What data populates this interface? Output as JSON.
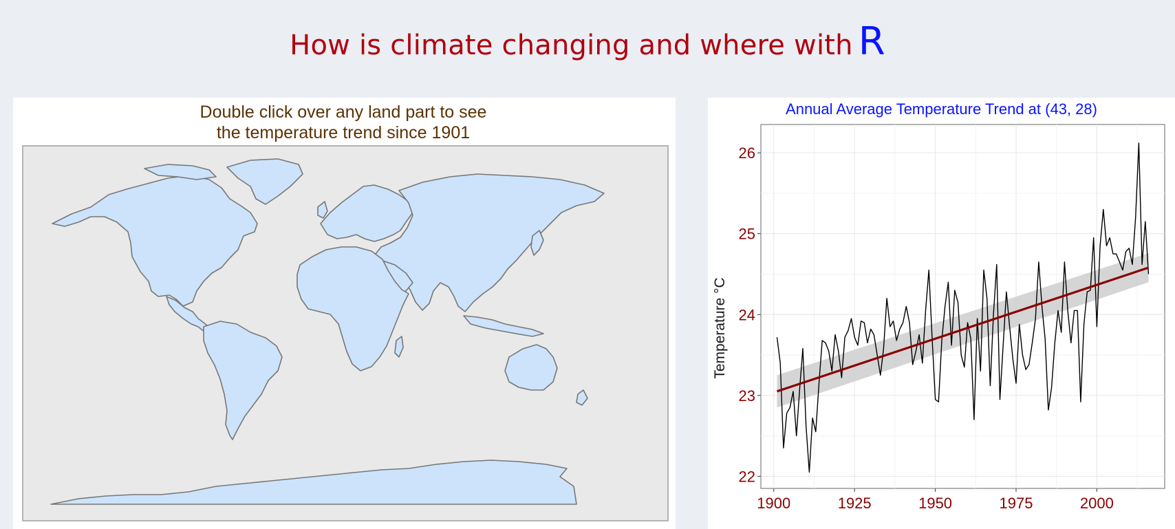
{
  "header": {
    "title": "How is climate changing and where with",
    "r_mark": "R"
  },
  "map_panel": {
    "caption_line1": "Double click over any land part to see",
    "caption_line2": "the temperature trend since 1901",
    "land_color": "#cce3fb",
    "border_color": "#777777"
  },
  "chart_data": {
    "type": "line",
    "title": "Annual Average Temperature Trend at (43, 28)",
    "xlabel": "",
    "ylabel": "Temperature  °C",
    "xlim": [
      1896,
      2021
    ],
    "ylim": [
      21.85,
      26.35
    ],
    "x_ticks": [
      1900,
      1925,
      1950,
      1975,
      2000
    ],
    "y_ticks": [
      22,
      23,
      24,
      25,
      26
    ],
    "grid": true,
    "series": [
      {
        "x": [
          1901,
          1902,
          1903,
          1904,
          1905,
          1906,
          1907,
          1908,
          1909,
          1910,
          1911,
          1912,
          1913,
          1914,
          1915,
          1916,
          1917,
          1918,
          1919,
          1920,
          1921,
          1922,
          1923,
          1924,
          1925,
          1926,
          1927,
          1928,
          1929,
          1930,
          1931,
          1932,
          1933,
          1934,
          1935,
          1936,
          1937,
          1938,
          1939,
          1940,
          1941,
          1942,
          1943,
          1944,
          1945,
          1946,
          1947,
          1948,
          1949,
          1950,
          1951,
          1952,
          1953,
          1954,
          1955,
          1956,
          1957,
          1958,
          1959,
          1960,
          1961,
          1962,
          1963,
          1964,
          1965,
          1966,
          1967,
          1968,
          1969,
          1970,
          1971,
          1972,
          1973,
          1974,
          1975,
          1976,
          1977,
          1978,
          1979,
          1980,
          1981,
          1982,
          1983,
          1984,
          1985,
          1986,
          1987,
          1988,
          1989,
          1990,
          1991,
          1992,
          1993,
          1994,
          1995,
          1996,
          1997,
          1998,
          1999,
          2000,
          2001,
          2002,
          2003,
          2004,
          2005,
          2006,
          2007,
          2008,
          2009,
          2010,
          2011,
          2012,
          2013,
          2014,
          2015,
          2016
        ],
        "values": [
          23.72,
          23.4,
          22.35,
          22.78,
          22.85,
          23.05,
          22.5,
          23.08,
          23.58,
          22.62,
          22.05,
          22.72,
          22.55,
          23.15,
          23.68,
          23.65,
          23.55,
          23.3,
          23.75,
          23.55,
          23.22,
          23.72,
          23.8,
          23.95,
          23.72,
          23.62,
          23.92,
          23.9,
          23.65,
          23.82,
          23.75,
          23.5,
          23.25,
          23.58,
          24.2,
          23.85,
          23.92,
          23.68,
          23.82,
          23.9,
          24.1,
          23.9,
          23.38,
          23.55,
          23.75,
          23.4,
          24.05,
          24.55,
          23.72,
          22.95,
          22.92,
          23.68,
          24.1,
          24.4,
          23.62,
          24.3,
          24.15,
          23.5,
          23.35,
          23.9,
          23.7,
          22.7,
          23.95,
          23.3,
          24.55,
          24.2,
          23.12,
          24.0,
          24.62,
          22.95,
          23.62,
          24.28,
          23.85,
          23.45,
          23.15,
          23.88,
          23.5,
          23.32,
          23.38,
          23.65,
          23.95,
          24.65,
          24.1,
          23.7,
          22.82,
          23.1,
          23.65,
          24.05,
          23.78,
          24.65,
          24.05,
          23.65,
          24.05,
          24.05,
          22.92,
          23.88,
          24.28,
          24.3,
          24.95,
          23.85,
          24.85,
          25.3,
          24.85,
          24.95,
          24.75,
          24.75,
          24.65,
          24.55,
          24.78,
          24.82,
          24.62,
          25.2,
          26.12,
          24.62,
          25.15,
          24.5
        ]
      }
    ],
    "trend": {
      "name": "linear fit",
      "x": [
        1901,
        2016
      ],
      "values": [
        23.05,
        24.58
      ],
      "ci_low": [
        22.85,
        24.4
      ],
      "ci_high": [
        23.25,
        24.76
      ]
    },
    "colors": {
      "series": "#000000",
      "trend": "#8b0000",
      "band": "#d0d0d0",
      "ticks": "#8b0000"
    }
  }
}
